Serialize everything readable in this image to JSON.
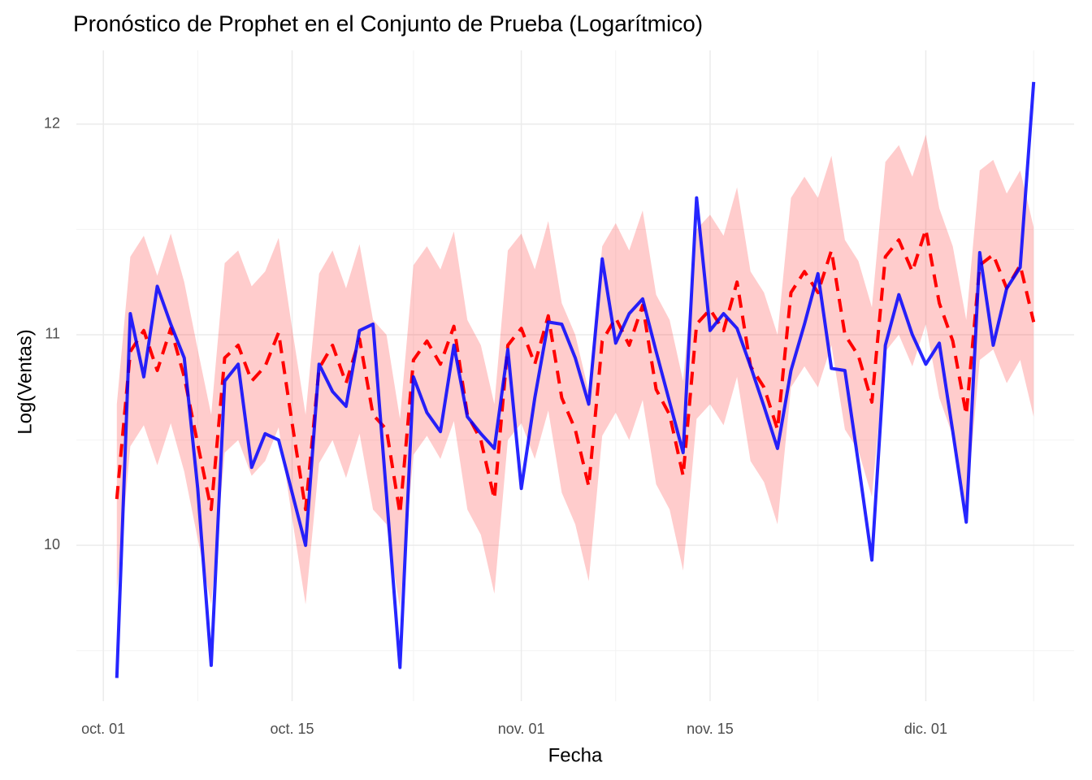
{
  "chart_data": {
    "type": "line",
    "title": "Pronóstico de Prophet en el Conjunto de Prueba (Logarítmico)",
    "x_label": "Fecha",
    "y_label": "Log(Ventas)",
    "x": [
      "10-02",
      "10-03",
      "10-04",
      "10-05",
      "10-06",
      "10-07",
      "10-08",
      "10-09",
      "10-10",
      "10-11",
      "10-12",
      "10-13",
      "10-14",
      "10-15",
      "10-16",
      "10-17",
      "10-18",
      "10-19",
      "10-20",
      "10-21",
      "10-22",
      "10-23",
      "10-24",
      "10-25",
      "10-26",
      "10-27",
      "10-28",
      "10-29",
      "10-30",
      "10-31",
      "11-01",
      "11-02",
      "11-03",
      "11-04",
      "11-05",
      "11-06",
      "11-07",
      "11-08",
      "11-09",
      "11-10",
      "11-11",
      "11-12",
      "11-13",
      "11-14",
      "11-15",
      "11-16",
      "11-17",
      "11-18",
      "11-19",
      "11-20",
      "11-21",
      "11-22",
      "11-23",
      "11-24",
      "11-25",
      "11-26",
      "11-27",
      "11-28",
      "11-29",
      "11-30",
      "12-01",
      "12-02",
      "12-03",
      "12-04",
      "12-05",
      "12-06",
      "12-07",
      "12-08",
      "12-09"
    ],
    "band": {
      "color": "#ff0000",
      "opacity": 0.2,
      "upper": [
        10.67,
        11.37,
        11.47,
        11.28,
        11.48,
        11.25,
        10.93,
        10.62,
        11.34,
        11.4,
        11.23,
        11.3,
        11.46,
        11.03,
        10.62,
        11.29,
        11.4,
        11.22,
        11.43,
        11.07,
        11.0,
        10.6,
        11.33,
        11.42,
        11.31,
        11.49,
        11.07,
        10.95,
        10.67,
        11.4,
        11.48,
        11.31,
        11.54,
        11.15,
        11.0,
        10.73,
        11.42,
        11.53,
        11.4,
        11.59,
        11.19,
        11.07,
        10.78,
        11.5,
        11.57,
        11.47,
        11.7,
        11.3,
        11.2,
        11.0,
        11.65,
        11.75,
        11.65,
        11.85,
        11.45,
        11.35,
        11.13,
        11.82,
        11.9,
        11.75,
        11.95,
        11.6,
        11.42,
        11.07,
        11.78,
        11.83,
        11.67,
        11.78,
        11.51
      ],
      "lower": [
        9.77,
        10.47,
        10.57,
        10.38,
        10.58,
        10.35,
        10.03,
        9.72,
        10.44,
        10.5,
        10.33,
        10.4,
        10.56,
        10.13,
        9.72,
        10.39,
        10.5,
        10.32,
        10.53,
        10.17,
        10.1,
        9.7,
        10.43,
        10.52,
        10.41,
        10.59,
        10.17,
        10.05,
        9.77,
        10.5,
        10.58,
        10.41,
        10.64,
        10.25,
        10.1,
        9.83,
        10.52,
        10.63,
        10.5,
        10.69,
        10.29,
        10.17,
        9.88,
        10.6,
        10.67,
        10.57,
        10.8,
        10.4,
        10.3,
        10.1,
        10.75,
        10.85,
        10.75,
        10.95,
        10.55,
        10.45,
        10.23,
        10.92,
        11.0,
        10.85,
        11.05,
        10.7,
        10.52,
        10.17,
        10.88,
        10.93,
        10.77,
        10.88,
        10.61
      ]
    },
    "series": [
      {
        "color": "#ff0000",
        "dashed": true,
        "opacity": 1,
        "values": [
          10.22,
          10.92,
          11.02,
          10.83,
          11.03,
          10.8,
          10.48,
          10.17,
          10.89,
          10.95,
          10.78,
          10.85,
          11.01,
          10.58,
          10.17,
          10.84,
          10.95,
          10.77,
          10.98,
          10.62,
          10.55,
          10.15,
          10.88,
          10.97,
          10.86,
          11.04,
          10.62,
          10.5,
          10.22,
          10.95,
          11.03,
          10.86,
          11.09,
          10.7,
          10.55,
          10.28,
          10.97,
          11.08,
          10.95,
          11.14,
          10.74,
          10.62,
          10.33,
          11.05,
          11.12,
          11.02,
          11.25,
          10.85,
          10.75,
          10.55,
          11.2,
          11.3,
          11.2,
          11.4,
          11.0,
          10.9,
          10.68,
          11.37,
          11.45,
          11.3,
          11.5,
          11.15,
          10.97,
          10.62,
          11.33,
          11.38,
          11.22,
          11.33,
          11.06
        ]
      },
      {
        "color": "#0000ff",
        "dashed": false,
        "opacity": 0.85,
        "values": [
          9.37,
          11.1,
          10.8,
          11.23,
          11.05,
          10.89,
          10.27,
          9.43,
          10.78,
          10.86,
          10.37,
          10.53,
          10.5,
          10.25,
          10.0,
          10.86,
          10.73,
          10.66,
          11.02,
          11.05,
          10.24,
          9.42,
          10.8,
          10.63,
          10.54,
          10.95,
          10.61,
          10.53,
          10.46,
          10.93,
          10.27,
          10.7,
          11.06,
          11.05,
          10.89,
          10.67,
          11.36,
          10.96,
          11.1,
          11.17,
          10.92,
          10.68,
          10.44,
          11.65,
          11.02,
          11.1,
          11.03,
          10.85,
          10.66,
          10.46,
          10.83,
          11.05,
          11.29,
          10.84,
          10.83,
          10.39,
          9.93,
          10.95,
          11.19,
          11.0,
          10.86,
          10.96,
          10.54,
          10.11,
          11.39,
          10.95,
          11.22,
          11.32,
          12.2
        ]
      }
    ],
    "xlim": [
      "09-29",
      "12-12"
    ],
    "xticks": [
      {
        "value": "10-01",
        "label": "oct. 01"
      },
      {
        "value": "10-15",
        "label": "oct. 15"
      },
      {
        "value": "11-01",
        "label": "nov. 01"
      },
      {
        "value": "11-15",
        "label": "nov. 15"
      },
      {
        "value": "12-01",
        "label": "dic. 01"
      }
    ],
    "x_minor_ticks": [
      "10-08",
      "10-24",
      "11-08",
      "11-23",
      "12-09"
    ],
    "ylim": [
      9.26,
      12.35
    ],
    "yticks": [
      10,
      11,
      12
    ],
    "y_minor_ticks": [
      9.5,
      10.5,
      11.5
    ],
    "grid": true
  }
}
